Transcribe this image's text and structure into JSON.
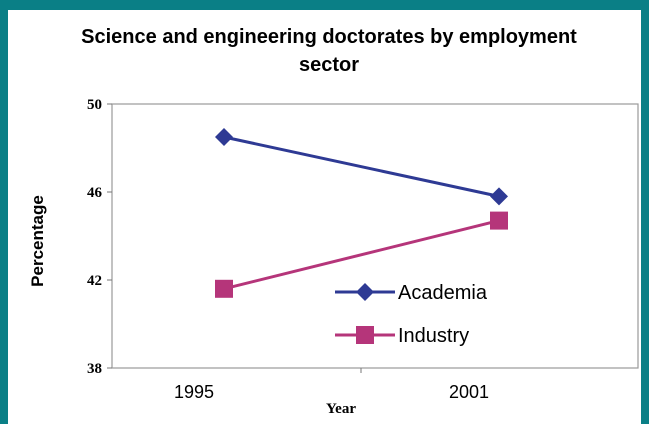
{
  "chart_data": {
    "type": "line",
    "title_lines": [
      "Science and engineering doctorates by employment",
      "sector"
    ],
    "xlabel": "Year",
    "ylabel": "Percentage",
    "categories": [
      "1995",
      "2001"
    ],
    "y_ticks": [
      "50",
      "46",
      "42",
      "38"
    ],
    "ylim": [
      38,
      50
    ],
    "series": [
      {
        "name": "Academia",
        "values": [
          48.5,
          45.8
        ],
        "color": "#2e3a94",
        "marker": "diamond"
      },
      {
        "name": "Industry",
        "values": [
          41.6,
          44.7
        ],
        "color": "#b5357a",
        "marker": "square"
      }
    ],
    "legend_position": "bottom-right",
    "grid": false
  }
}
